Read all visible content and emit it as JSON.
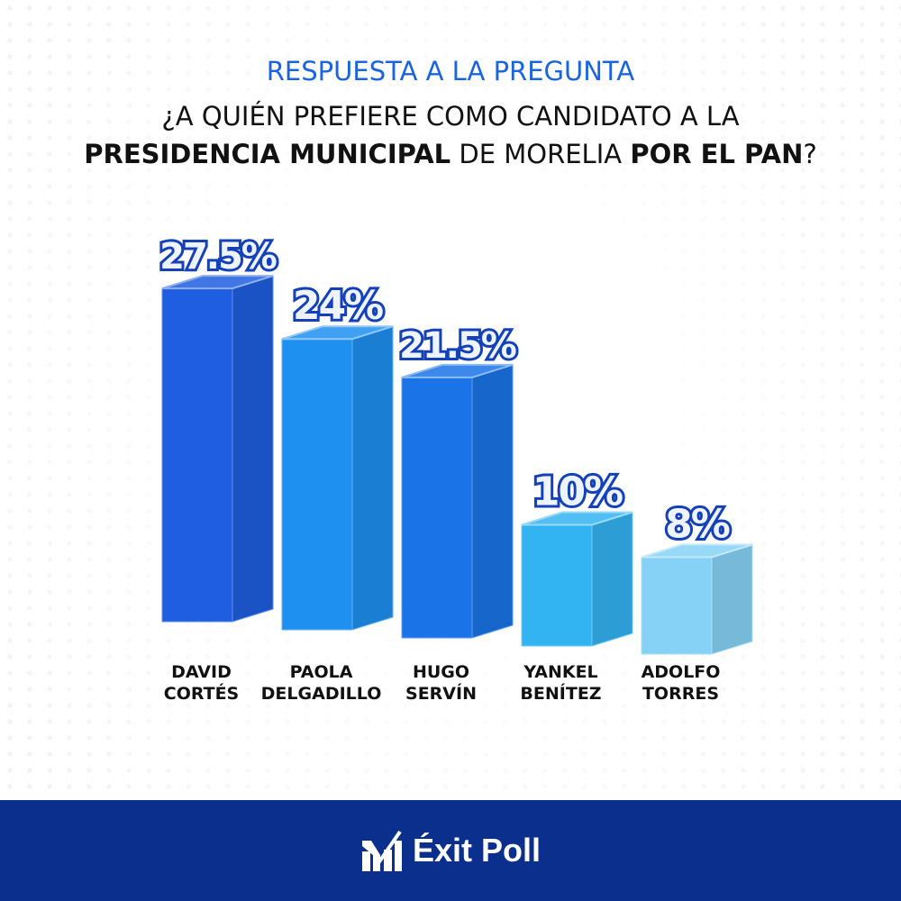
{
  "header": {
    "kicker": "RESPUESTA A LA PREGUNTA",
    "q_line1": "¿A QUIÉN PREFIERE COMO CANDIDATO A LA",
    "q_bold1": "PRESIDENCIA MUNICIPAL",
    "q_mid": " DE MORELIA ",
    "q_bold2": "POR EL PAN",
    "q_end": "?"
  },
  "chart_data": {
    "type": "bar",
    "categories": [
      "DAVID CORTÉS",
      "PAOLA DELGADILLO",
      "HUGO SERVÍN",
      "YANKEL BENÍTEZ",
      "ADOLFO TORRES"
    ],
    "category_lines": [
      [
        "DAVID",
        "CORTÉS"
      ],
      [
        "PAOLA",
        "DELGADILLO"
      ],
      [
        "HUGO",
        "SERVÍN"
      ],
      [
        "YANKEL",
        "BENÍTEZ"
      ],
      [
        "ADOLFO",
        "TORRES"
      ]
    ],
    "values": [
      27.5,
      24,
      21.5,
      10,
      8
    ],
    "data_labels": [
      "27.5%",
      "24%",
      "21.5%",
      "10%",
      "8%"
    ],
    "colors": [
      "#1f5ee0",
      "#1e90f0",
      "#1a74e8",
      "#33b4f2",
      "#86d2f6"
    ],
    "ylim": [
      0,
      30
    ],
    "grid": false
  },
  "footer": {
    "brand": "Éxit Poll",
    "logo_icon": "checkmark-bars-logo"
  }
}
